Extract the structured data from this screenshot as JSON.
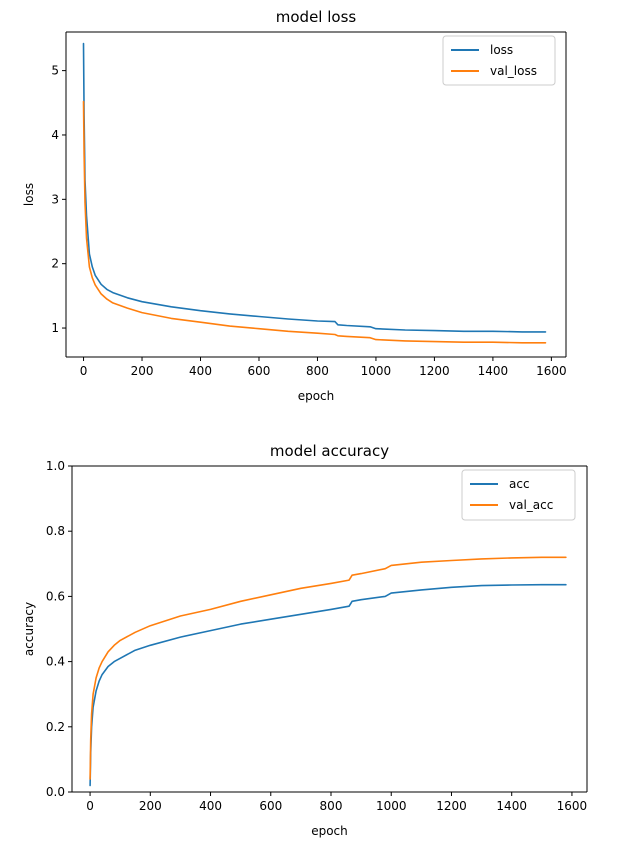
{
  "colors": {
    "series_1": "#1f77b4",
    "series_2": "#ff7f0e"
  },
  "chart_data": [
    {
      "type": "line",
      "title": "model loss",
      "xlabel": "epoch",
      "ylabel": "loss",
      "xlim": [
        -60,
        1650
      ],
      "ylim": [
        0.55,
        5.6
      ],
      "xticks": [
        0,
        200,
        400,
        600,
        800,
        1000,
        1200,
        1400,
        1600
      ],
      "yticks": [
        1,
        2,
        3,
        4,
        5
      ],
      "legend": "top-right",
      "grid": false,
      "series": [
        {
          "name": "loss",
          "color": "#1f77b4",
          "x": [
            0,
            2,
            5,
            10,
            20,
            30,
            40,
            60,
            80,
            100,
            150,
            200,
            300,
            400,
            500,
            600,
            700,
            800,
            860,
            870,
            900,
            980,
            1000,
            1100,
            1200,
            1300,
            1400,
            1500,
            1580
          ],
          "y": [
            5.42,
            4.3,
            3.3,
            2.75,
            2.15,
            1.95,
            1.82,
            1.68,
            1.6,
            1.55,
            1.47,
            1.41,
            1.33,
            1.27,
            1.22,
            1.18,
            1.14,
            1.11,
            1.1,
            1.05,
            1.04,
            1.02,
            0.99,
            0.97,
            0.96,
            0.95,
            0.95,
            0.94,
            0.94
          ]
        },
        {
          "name": "val_loss",
          "color": "#ff7f0e",
          "x": [
            0,
            2,
            5,
            10,
            20,
            30,
            40,
            60,
            80,
            100,
            150,
            200,
            300,
            400,
            500,
            600,
            700,
            800,
            860,
            870,
            900,
            980,
            1000,
            1100,
            1200,
            1300,
            1400,
            1500,
            1580
          ],
          "y": [
            4.52,
            3.7,
            2.95,
            2.4,
            1.95,
            1.78,
            1.67,
            1.53,
            1.45,
            1.39,
            1.31,
            1.24,
            1.15,
            1.09,
            1.03,
            0.99,
            0.95,
            0.92,
            0.9,
            0.88,
            0.87,
            0.85,
            0.82,
            0.8,
            0.79,
            0.78,
            0.78,
            0.77,
            0.77
          ]
        }
      ]
    },
    {
      "type": "line",
      "title": "model accuracy",
      "xlabel": "epoch",
      "ylabel": "accuracy",
      "xlim": [
        -60,
        1650
      ],
      "ylim": [
        0.0,
        1.0
      ],
      "xticks": [
        0,
        200,
        400,
        600,
        800,
        1000,
        1200,
        1400,
        1600
      ],
      "yticks": [
        0.0,
        0.2,
        0.4,
        0.6,
        0.8,
        1.0
      ],
      "legend": "top-right",
      "grid": false,
      "series": [
        {
          "name": "acc",
          "color": "#1f77b4",
          "x": [
            0,
            2,
            5,
            10,
            20,
            30,
            40,
            60,
            80,
            100,
            150,
            200,
            300,
            400,
            500,
            600,
            700,
            800,
            860,
            870,
            900,
            980,
            1000,
            1100,
            1200,
            1300,
            1400,
            1500,
            1580
          ],
          "y": [
            0.02,
            0.12,
            0.2,
            0.26,
            0.31,
            0.34,
            0.36,
            0.385,
            0.4,
            0.41,
            0.435,
            0.45,
            0.475,
            0.495,
            0.515,
            0.53,
            0.545,
            0.56,
            0.57,
            0.585,
            0.59,
            0.6,
            0.61,
            0.62,
            0.628,
            0.633,
            0.635,
            0.636,
            0.636
          ]
        },
        {
          "name": "val_acc",
          "color": "#ff7f0e",
          "x": [
            0,
            2,
            5,
            10,
            20,
            30,
            40,
            60,
            80,
            100,
            150,
            200,
            300,
            400,
            500,
            600,
            700,
            800,
            860,
            870,
            900,
            980,
            1000,
            1100,
            1200,
            1300,
            1400,
            1500,
            1580
          ],
          "y": [
            0.04,
            0.16,
            0.24,
            0.3,
            0.35,
            0.38,
            0.4,
            0.43,
            0.45,
            0.465,
            0.49,
            0.51,
            0.54,
            0.56,
            0.585,
            0.605,
            0.625,
            0.64,
            0.65,
            0.665,
            0.67,
            0.685,
            0.695,
            0.705,
            0.71,
            0.715,
            0.718,
            0.72,
            0.72
          ]
        }
      ]
    }
  ]
}
